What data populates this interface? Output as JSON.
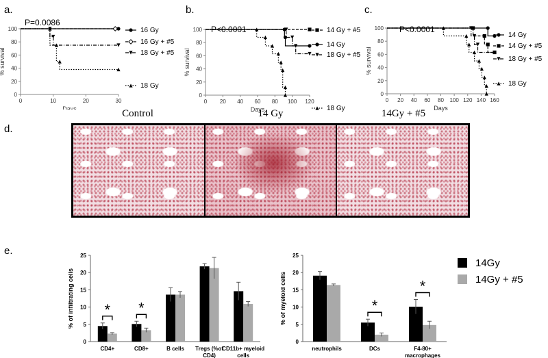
{
  "panel_labels": {
    "a": "a.",
    "b": "b.",
    "c": "c.",
    "d": "d.",
    "e": "e."
  },
  "histology": {
    "titles": [
      "Control",
      "14 Gy",
      "14Gy + #5"
    ]
  },
  "chart_data": [
    {
      "id": "a",
      "type": "line",
      "subtype": "kaplan-meier",
      "annotation": "P=0.0086",
      "xlabel": "Days",
      "ylabel": "% survival",
      "xlim": [
        0,
        30
      ],
      "ylim": [
        0,
        100
      ],
      "xticks": [
        0,
        10,
        20,
        30
      ],
      "yticks": [
        0,
        20,
        40,
        60,
        80,
        100
      ],
      "series": [
        {
          "name": "16 Gy",
          "style": "solid",
          "marker": "circle",
          "points": [
            [
              0,
              100
            ],
            [
              30,
              100
            ]
          ]
        },
        {
          "name": "16 Gy + #5",
          "style": "dashed",
          "marker": "diamond-open",
          "points": [
            [
              0,
              100
            ],
            [
              29,
              100
            ]
          ]
        },
        {
          "name": "18 Gy + #5",
          "style": "dashdot",
          "marker": "triangle-down",
          "points": [
            [
              0,
              100
            ],
            [
              9,
              100
            ],
            [
              9,
              88
            ],
            [
              10,
              88
            ],
            [
              10,
              75
            ],
            [
              30,
              75
            ]
          ]
        },
        {
          "name": "18 Gy",
          "style": "dotted",
          "marker": "triangle-up",
          "points": [
            [
              0,
              100
            ],
            [
              9,
              100
            ],
            [
              9,
              75
            ],
            [
              11,
              75
            ],
            [
              11,
              50
            ],
            [
              12,
              50
            ],
            [
              12,
              38
            ],
            [
              30,
              38
            ]
          ]
        }
      ]
    },
    {
      "id": "b",
      "type": "line",
      "subtype": "kaplan-meier",
      "annotation": "P<0.0001",
      "xlabel": "Days",
      "ylabel": "% survival",
      "xlim": [
        0,
        120
      ],
      "ylim": [
        0,
        100
      ],
      "xticks": [
        0,
        20,
        40,
        60,
        80,
        100,
        120
      ],
      "yticks": [
        0,
        20,
        40,
        60,
        80,
        100
      ],
      "series": [
        {
          "name": "14 Gy + #5",
          "style": "dashed",
          "marker": "square",
          "points": [
            [
              0,
              100
            ],
            [
              120,
              100
            ]
          ]
        },
        {
          "name": "14 Gy",
          "style": "solid",
          "marker": "circle",
          "points": [
            [
              0,
              100
            ],
            [
              91,
              100
            ],
            [
              91,
              88
            ],
            [
              92,
              88
            ],
            [
              92,
              75
            ],
            [
              120,
              75
            ]
          ]
        },
        {
          "name": "18 Gy + #5",
          "style": "dashdot",
          "marker": "triangle-down",
          "points": [
            [
              0,
              100
            ],
            [
              93,
              100
            ],
            [
              93,
              88
            ],
            [
              100,
              88
            ],
            [
              100,
              75
            ],
            [
              104,
              75
            ],
            [
              104,
              63
            ],
            [
              120,
              63
            ]
          ]
        },
        {
          "name": "18 Gy",
          "style": "dotted",
          "marker": "triangle-up",
          "points": [
            [
              0,
              100
            ],
            [
              59,
              100
            ],
            [
              59,
              88
            ],
            [
              69,
              88
            ],
            [
              69,
              75
            ],
            [
              77,
              75
            ],
            [
              77,
              63
            ],
            [
              84,
              63
            ],
            [
              84,
              50
            ],
            [
              87,
              50
            ],
            [
              87,
              38
            ],
            [
              89,
              38
            ],
            [
              89,
              12
            ],
            [
              92,
              12
            ],
            [
              92,
              0
            ]
          ]
        }
      ]
    },
    {
      "id": "c",
      "type": "line",
      "subtype": "kaplan-meier",
      "annotation": "P<0.0001",
      "xlabel": "Days",
      "ylabel": "% survival",
      "xlim": [
        0,
        160
      ],
      "ylim": [
        0,
        100
      ],
      "xticks": [
        0,
        20,
        40,
        60,
        80,
        100,
        120,
        140,
        160
      ],
      "yticks": [
        0,
        20,
        40,
        60,
        80,
        100
      ],
      "series": [
        {
          "name": "14 Gy",
          "style": "solid",
          "marker": "circle",
          "points": [
            [
              0,
              100
            ],
            [
              150,
              100
            ],
            [
              150,
              88
            ],
            [
              160,
              88
            ]
          ]
        },
        {
          "name": "14 Gy + #5",
          "style": "dashed",
          "marker": "square",
          "points": [
            [
              0,
              100
            ],
            [
              128,
              100
            ],
            [
              128,
              88
            ],
            [
              145,
              88
            ],
            [
              145,
              75
            ],
            [
              150,
              75
            ],
            [
              150,
              63
            ],
            [
              160,
              63
            ]
          ]
        },
        {
          "name": "18 Gy + #5",
          "style": "dashdot",
          "marker": "triangle-down",
          "points": [
            [
              0,
              100
            ],
            [
              125,
              100
            ],
            [
              125,
              88
            ],
            [
              130,
              88
            ],
            [
              130,
              75
            ],
            [
              135,
              75
            ],
            [
              135,
              63
            ],
            [
              160,
              63
            ]
          ]
        },
        {
          "name": "18 Gy",
          "style": "dotted",
          "marker": "triangle-up",
          "points": [
            [
              0,
              100
            ],
            [
              84,
              100
            ],
            [
              84,
              88
            ],
            [
              118,
              88
            ],
            [
              118,
              75
            ],
            [
              122,
              75
            ],
            [
              122,
              63
            ],
            [
              130,
              63
            ],
            [
              130,
              50
            ],
            [
              137,
              50
            ],
            [
              137,
              38
            ],
            [
              141,
              38
            ],
            [
              141,
              25
            ],
            [
              145,
              25
            ],
            [
              145,
              12
            ],
            [
              148,
              12
            ],
            [
              148,
              0
            ]
          ]
        }
      ]
    },
    {
      "id": "e1",
      "type": "bar",
      "ylabel": "% of infiltrating cells",
      "ylim": [
        0,
        25
      ],
      "yticks": [
        0,
        5,
        10,
        15,
        20,
        25
      ],
      "categories": [
        "CD4+",
        "CD8+",
        "B cells",
        "Tregs (%of CD4)",
        "CD11b+ myeloid cells"
      ],
      "series": [
        {
          "name": "14Gy",
          "color": "#000000",
          "values": [
            4.5,
            5.1,
            13.6,
            21.8,
            14.6
          ],
          "errors": [
            0.9,
            0.8,
            2.0,
            0.8,
            2.6
          ]
        },
        {
          "name": "14Gy + #5",
          "color": "#a9a9a9",
          "values": [
            2.3,
            3.3,
            13.6,
            21.3,
            10.9
          ],
          "errors": [
            0.3,
            0.6,
            0.9,
            3.1,
            0.7
          ]
        }
      ],
      "significance": [
        0,
        1
      ],
      "significance_label": "*"
    },
    {
      "id": "e2",
      "type": "bar",
      "ylabel": "% of myeloid cells",
      "ylim": [
        0,
        25
      ],
      "yticks": [
        0,
        5,
        10,
        15,
        20,
        25
      ],
      "categories": [
        "neutrophils",
        "DCs",
        "F4-80+ macrophages"
      ],
      "series": [
        {
          "name": "14Gy",
          "color": "#000000",
          "values": [
            19.1,
            5.5,
            10.1
          ],
          "errors": [
            1.2,
            1.0,
            2.1
          ]
        },
        {
          "name": "14Gy + #5",
          "color": "#a9a9a9",
          "values": [
            16.4,
            2.0,
            4.8
          ],
          "errors": [
            0.3,
            0.5,
            1.1
          ]
        }
      ],
      "significance": [
        1,
        2
      ],
      "significance_label": "*"
    }
  ]
}
